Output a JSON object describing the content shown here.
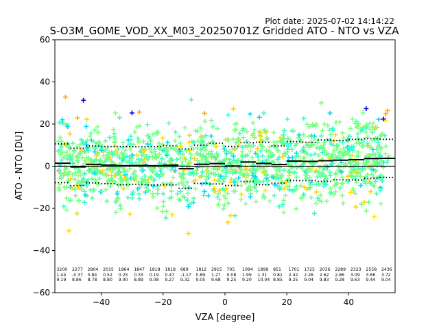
{
  "header": {
    "plot_date": "Plot date: 2025-07-02 14:14:22",
    "title": "S-O3M_GOME_VOD_XX_M03_20250701Z Gridded ATO - NTO vs VZA"
  },
  "chart_data": {
    "type": "scatter",
    "xlabel": "VZA [degree]",
    "ylabel": "ATO - NTO [DU]",
    "xlim": [
      -55,
      55
    ],
    "ylim": [
      -60,
      60
    ],
    "xticks": [
      -40,
      -20,
      0,
      20,
      40
    ],
    "yticks": [
      -60,
      -40,
      -20,
      0,
      20,
      40,
      60
    ],
    "grid": false,
    "marker": "+",
    "point_colors": [
      "#7fff7f",
      "#5cff9a",
      "#33ffc8",
      "#00d8ff",
      "#ffd700",
      "#ffaa00",
      "#0000ee"
    ],
    "zero_line": 0,
    "bins": {
      "edges": [
        -55,
        -50,
        -45,
        -40,
        -35,
        -30,
        -25,
        -20,
        -15,
        -10,
        -5,
        0,
        5,
        10,
        15,
        20,
        25,
        30,
        35,
        40,
        45,
        50,
        55
      ],
      "counts": [
        "3200",
        "2277",
        "2804",
        "2015",
        "1864",
        "1847",
        "1818",
        "1818",
        "689",
        "1812",
        "2915",
        "705",
        "1094",
        "1899",
        "851",
        "1701",
        "1725",
        "2036",
        "2289",
        "2323",
        "2558",
        "2436"
      ],
      "means": [
        "1.44",
        "-0.37",
        "0.84",
        "0.52",
        "0.25",
        "0.33",
        "0.19",
        "0.47",
        "-1.17",
        "0.89",
        "1.27",
        "0.08",
        "1.99",
        "1.31",
        "0.81",
        "2.42",
        "2.26",
        "2.62",
        "2.86",
        "3.09",
        "3.66",
        "3.72"
      ],
      "stds": [
        "9.19",
        "8.86",
        "8.78",
        "8.80",
        "9.00",
        "8.89",
        "9.08",
        "9.27",
        "9.32",
        "9.05",
        "9.68",
        "9.25",
        "9.20",
        "10.04",
        "8.85",
        "9.25",
        "9.04",
        "9.83",
        "9.28",
        "9.63",
        "9.44",
        "9.04"
      ]
    }
  }
}
